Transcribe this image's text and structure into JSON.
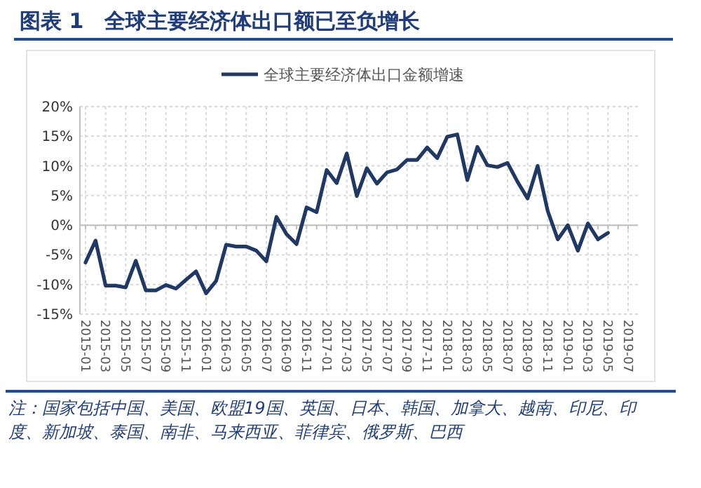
{
  "chart_data": {
    "type": "line",
    "title": "图表 1　全球主要经济体出口额已至负增长",
    "categories": [
      "2015-01",
      null,
      "2015-03",
      null,
      "2015-05",
      null,
      "2015-07",
      null,
      "2015-09",
      null,
      "2015-11",
      null,
      "2016-01",
      null,
      "2016-03",
      null,
      "2016-05",
      null,
      "2016-07",
      null,
      "2016-09",
      null,
      "2016-11",
      null,
      "2017-01",
      null,
      "2017-03",
      null,
      "2017-05",
      null,
      "2017-07",
      null,
      "2017-09",
      null,
      "2017-11",
      null,
      "2018-01",
      null,
      "2018-03",
      null,
      "2018-05",
      null,
      "2018-07",
      null,
      "2018-09",
      null,
      "2018-11",
      null,
      "2019-01",
      null,
      "2019-03",
      null,
      "2019-05",
      null,
      "2019-07"
    ],
    "series": [
      {
        "name": "全球主要经济体出口金额增速",
        "color": "#1f3864",
        "values": [
          -6.3,
          -2.6,
          -10.2,
          -10.2,
          -10.5,
          -6,
          -11,
          -11,
          -10.1,
          -10.7,
          -9.2,
          -7.8,
          -11.5,
          -9.4,
          -3.3,
          -3.6,
          -3.6,
          -4.3,
          -6.1,
          1.4,
          -1.5,
          -3.2,
          3,
          2.2,
          9.3,
          7.1,
          12.1,
          4.9,
          9.6,
          7,
          8.9,
          9.4,
          11,
          11,
          13.1,
          11.3,
          14.9,
          15.3,
          7.6,
          13.2,
          10.1,
          9.8,
          10.5,
          7.3,
          4.5,
          10,
          2.4,
          -2.4,
          0,
          -4.3,
          0.3,
          -2.4,
          -1.3,
          null,
          null
        ]
      }
    ],
    "ylim": [
      -15,
      20
    ],
    "yticks": [
      {
        "value": -15,
        "label": "-15%"
      },
      {
        "value": -10,
        "label": "-10%"
      },
      {
        "value": -5,
        "label": "-5%"
      },
      {
        "value": 0,
        "label": "0%"
      },
      {
        "value": 5,
        "label": "5%"
      },
      {
        "value": 10,
        "label": "10%"
      },
      {
        "value": 15,
        "label": "15%"
      },
      {
        "value": 20,
        "label": "20%"
      }
    ],
    "grid": true,
    "legend": "top",
    "line_style": "solid",
    "annotations": [
      "注：国家包括中国、美国、欧盟19国、英国、日本、韩国、加拿大、越南、印尼、印度、新加坡、泰国、南非、马来西亚、菲律宾、俄罗斯、巴西"
    ]
  }
}
